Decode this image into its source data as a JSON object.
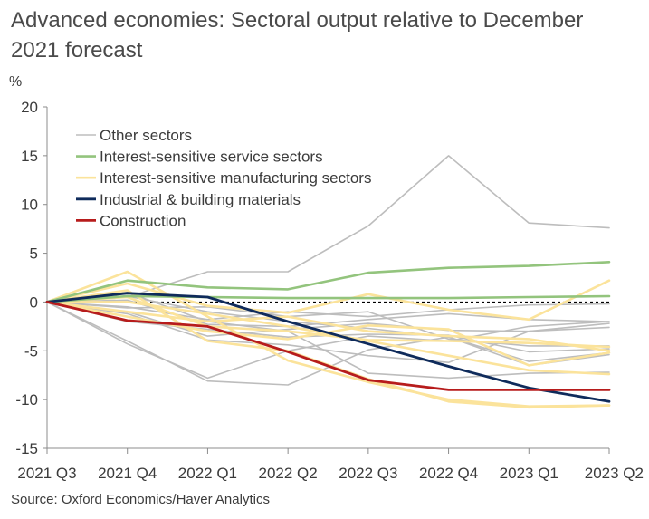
{
  "chart_data": {
    "type": "line",
    "title": "Advanced economies: Sectoral output relative to December 2021 forecast",
    "ylabel": "%",
    "xlabel": "",
    "ylim": [
      -15,
      20
    ],
    "yticks": [
      20,
      15,
      10,
      5,
      0,
      -5,
      -10,
      -15
    ],
    "categories": [
      "2021 Q3",
      "2021 Q4",
      "2022 Q1",
      "2022 Q2",
      "2022 Q3",
      "2022 Q4",
      "2023 Q1",
      "2023 Q2"
    ],
    "reference_line": 0,
    "legend": [
      "Other sectors",
      "Interest-sensitive service sectors",
      "Interest-sensitive manufacturing sectors",
      "Industrial & building materials",
      "Construction"
    ],
    "colors": {
      "Other sectors": "#bdbdbd",
      "Interest-sensitive service sectors": "#93c47d",
      "Interest-sensitive manufacturing sectors": "#fbe39b",
      "Industrial & building materials": "#0f2b5b",
      "Construction": "#b71c1c"
    },
    "series": [
      {
        "name": "Other sectors",
        "group": "Other sectors",
        "values": [
          0,
          0.5,
          3.1,
          3.1,
          7.8,
          15.0,
          8.1,
          7.6
        ]
      },
      {
        "name": "Other sectors",
        "group": "Other sectors",
        "values": [
          0,
          -4.3,
          -7.8,
          -5.0,
          -3.5,
          -4.0,
          -2.5,
          -2.0
        ]
      },
      {
        "name": "Other sectors",
        "group": "Other sectors",
        "values": [
          0,
          -4.0,
          -8.1,
          -8.5,
          -4.9,
          -3.6,
          -6.5,
          -5.4
        ]
      },
      {
        "name": "Other sectors",
        "group": "Other sectors",
        "values": [
          0,
          -1.0,
          -3.5,
          -2.8,
          -2.2,
          -2.9,
          -3.0,
          -2.6
        ]
      },
      {
        "name": "Other sectors",
        "group": "Other sectors",
        "values": [
          0,
          1.0,
          -2.0,
          -3.0,
          -7.3,
          -7.8,
          -7.3,
          -7.2
        ]
      },
      {
        "name": "Other sectors",
        "group": "Other sectors",
        "values": [
          0,
          -0.5,
          -1.8,
          -1.0,
          -1.5,
          -0.8,
          -0.3,
          -0.2
        ]
      },
      {
        "name": "Other sectors",
        "group": "Other sectors",
        "values": [
          0,
          -2.0,
          -2.8,
          -3.6,
          -3.3,
          -3.4,
          -5.1,
          -4.8
        ]
      },
      {
        "name": "Other sectors",
        "group": "Other sectors",
        "values": [
          0,
          -0.6,
          -0.5,
          -1.5,
          -1.0,
          -3.8,
          -4.5,
          -4.5
        ]
      },
      {
        "name": "Other sectors",
        "group": "Other sectors",
        "values": [
          0,
          0.6,
          -1.0,
          -2.0,
          -2.7,
          -3.6,
          -6.1,
          -5.2
        ]
      },
      {
        "name": "Other sectors",
        "group": "Other sectors",
        "values": [
          0,
          -1.2,
          -3.9,
          -4.4,
          -5.5,
          -6.2,
          -3.0,
          -2.2
        ]
      },
      {
        "name": "Other sectors",
        "group": "Other sectors",
        "values": [
          0,
          0.2,
          -2.3,
          -2.5,
          -1.8,
          -1.2,
          -1.8,
          -2.0
        ]
      },
      {
        "name": "Interest-sensitive manufacturing sectors",
        "group": "Interest-sensitive manufacturing sectors",
        "values": [
          0,
          3.1,
          -1.5,
          -6.0,
          -8.2,
          -10.0,
          -10.7,
          -10.6
        ]
      },
      {
        "name": "Interest-sensitive manufacturing sectors",
        "group": "Interest-sensitive manufacturing sectors",
        "values": [
          0,
          1.9,
          -0.4,
          -1.1,
          0.8,
          -0.8,
          -1.8,
          2.2
        ]
      },
      {
        "name": "Interest-sensitive manufacturing sectors",
        "group": "Interest-sensitive manufacturing sectors",
        "values": [
          0,
          1.2,
          -4.0,
          -5.0,
          -7.9,
          -10.2,
          -10.8,
          -10.6
        ]
      },
      {
        "name": "Interest-sensitive manufacturing sectors",
        "group": "Interest-sensitive manufacturing sectors",
        "values": [
          0,
          0.5,
          -2.5,
          -3.0,
          -3.9,
          -4.0,
          -4.2,
          -4.6
        ]
      },
      {
        "name": "Interest-sensitive manufacturing sectors",
        "group": "Interest-sensitive manufacturing sectors",
        "values": [
          0,
          -1.5,
          -3.0,
          -3.8,
          -2.4,
          -2.8,
          -6.5,
          -5.2
        ]
      },
      {
        "name": "Interest-sensitive manufacturing sectors",
        "group": "Interest-sensitive manufacturing sectors",
        "values": [
          0,
          0.0,
          -1.2,
          -2.5,
          -4.0,
          -5.5,
          -7.0,
          -7.4
        ]
      },
      {
        "name": "Interest-sensitive manufacturing sectors",
        "group": "Interest-sensitive manufacturing sectors",
        "values": [
          0,
          -1.0,
          -2.0,
          -1.5,
          -3.0,
          -3.5,
          -3.8,
          -5.0
        ]
      },
      {
        "name": "Interest-sensitive service sectors",
        "group": "Interest-sensitive service sectors",
        "values": [
          0,
          2.2,
          1.5,
          1.3,
          3.0,
          3.5,
          3.7,
          4.1
        ]
      },
      {
        "name": "Interest-sensitive service sectors",
        "group": "Interest-sensitive service sectors",
        "values": [
          0,
          0.6,
          0.5,
          0.4,
          0.4,
          0.4,
          0.5,
          0.6
        ]
      },
      {
        "name": "Industrial & building materials",
        "group": "Industrial & building materials",
        "values": [
          0,
          0.9,
          0.5,
          -2.0,
          -4.3,
          -6.6,
          -8.8,
          -10.2
        ]
      },
      {
        "name": "Construction",
        "group": "Construction",
        "values": [
          0,
          -1.9,
          -2.5,
          -5.1,
          -8.0,
          -9.0,
          -9.0,
          -9.0
        ]
      }
    ]
  },
  "source": "Source: Oxford Economics/Haver Analytics"
}
